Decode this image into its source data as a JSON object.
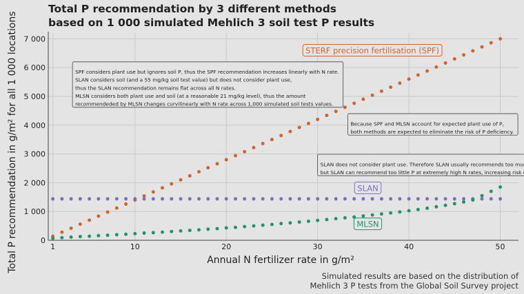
{
  "title_lines": [
    "Total P recommendation by 3 different methods",
    "based on 1 000 simulated Mehlich 3 soil test P results"
  ],
  "caption_lines": [
    "Simulated results are based on the distribution of",
    "Mehlich 3 P tests from the Global Soil Survey project"
  ],
  "chart_data": {
    "type": "scatter",
    "xlabel": "Annual N fertilizer rate in g/m²",
    "ylabel": "Total P recommendation in g/m² for all 1 000 locations",
    "xlim": [
      0.5,
      52
    ],
    "ylim": [
      0,
      7200
    ],
    "x_ticks": [
      1,
      10,
      20,
      30,
      40,
      50
    ],
    "y_ticks": [
      0,
      1000,
      2000,
      3000,
      4000,
      5000,
      6000,
      7000
    ],
    "y_tick_labels": [
      "0",
      "1 000",
      "2 000",
      "3 000",
      "4 000",
      "5 000",
      "6 000",
      "7 000"
    ],
    "grid": true,
    "x": [
      1,
      2,
      3,
      4,
      5,
      6,
      7,
      8,
      9,
      10,
      11,
      12,
      13,
      14,
      15,
      16,
      17,
      18,
      19,
      20,
      21,
      22,
      23,
      24,
      25,
      26,
      27,
      28,
      29,
      30,
      31,
      32,
      33,
      34,
      35,
      36,
      37,
      38,
      39,
      40,
      41,
      42,
      43,
      44,
      45,
      46,
      47,
      48,
      49,
      50
    ],
    "series": [
      {
        "name": "STERF precision fertilisation (SPF)",
        "color": "#d2642a",
        "values": [
          140,
          280,
          420,
          560,
          700,
          840,
          980,
          1120,
          1260,
          1400,
          1540,
          1680,
          1820,
          1960,
          2100,
          2240,
          2380,
          2520,
          2660,
          2800,
          2940,
          3080,
          3220,
          3360,
          3500,
          3640,
          3780,
          3920,
          4060,
          4200,
          4340,
          4480,
          4620,
          4760,
          4900,
          5040,
          5180,
          5320,
          5460,
          5600,
          5740,
          5880,
          6020,
          6160,
          6300,
          6440,
          6580,
          6720,
          6860,
          7000
        ]
      },
      {
        "name": "SLAN",
        "color": "#7b6fc4",
        "values": [
          1440,
          1440,
          1440,
          1440,
          1440,
          1440,
          1440,
          1440,
          1440,
          1440,
          1440,
          1440,
          1440,
          1440,
          1440,
          1440,
          1440,
          1440,
          1440,
          1440,
          1440,
          1440,
          1440,
          1440,
          1440,
          1440,
          1440,
          1440,
          1440,
          1440,
          1440,
          1440,
          1440,
          1440,
          1440,
          1440,
          1440,
          1440,
          1440,
          1440,
          1440,
          1440,
          1440,
          1440,
          1440,
          1440,
          1440,
          1440,
          1440,
          1440
        ]
      },
      {
        "name": "MLSN",
        "color": "#23936a",
        "values": [
          70,
          90,
          110,
          130,
          140,
          160,
          175,
          195,
          210,
          230,
          250,
          265,
          285,
          305,
          325,
          345,
          365,
          385,
          405,
          430,
          450,
          475,
          500,
          525,
          550,
          580,
          605,
          635,
          660,
          690,
          720,
          750,
          780,
          810,
          845,
          880,
          915,
          950,
          985,
          1025,
          1070,
          1115,
          1165,
          1215,
          1270,
          1330,
          1400,
          1550,
          1700,
          1850
        ]
      }
    ],
    "series_labels": [
      {
        "text": "STERF precision fertilisation (SPF)",
        "x": 36,
        "y": 6590,
        "anchor": "middle"
      },
      {
        "text": "SLAN",
        "x": 35.5,
        "y": 1810,
        "anchor": "middle"
      },
      {
        "text": "MLSN",
        "x": 35.5,
        "y": 560,
        "anchor": "middle"
      }
    ],
    "annotations": [
      {
        "lines": [
          "SPF considers plant use but ignores soil P, thus the SPF recommendation increases linearly with N rate.",
          "SLAN considers soil (and a 55 mg/kg soil test value) but does not consider plant use,",
          "thus the SLAN recommendation remains flat across all N rates.",
          "MLSN considers both plant use and soil (at a reasonable 21 mg/kg level), thus the amount",
          "recommendeded by MLSN changes curvilinearly with N rate across 1,000 simulated soil tests values."
        ],
        "x": 3.15,
        "y": 6200
      },
      {
        "lines": [
          "Because SPF and MLSN account for expected plant use of P,",
          "both methods are expected to eliminate the risk of P deficiency."
        ],
        "x": 33.3,
        "y": 4400
      },
      {
        "lines": [
          "SLAN does not consider plant use. Therefore SLAN usually recommends too much P,",
          "but SLAN can recommend too little P at extremely high N rates, increasing risk of P deficiency."
        ],
        "x": 30.0,
        "y": 2990
      }
    ]
  }
}
